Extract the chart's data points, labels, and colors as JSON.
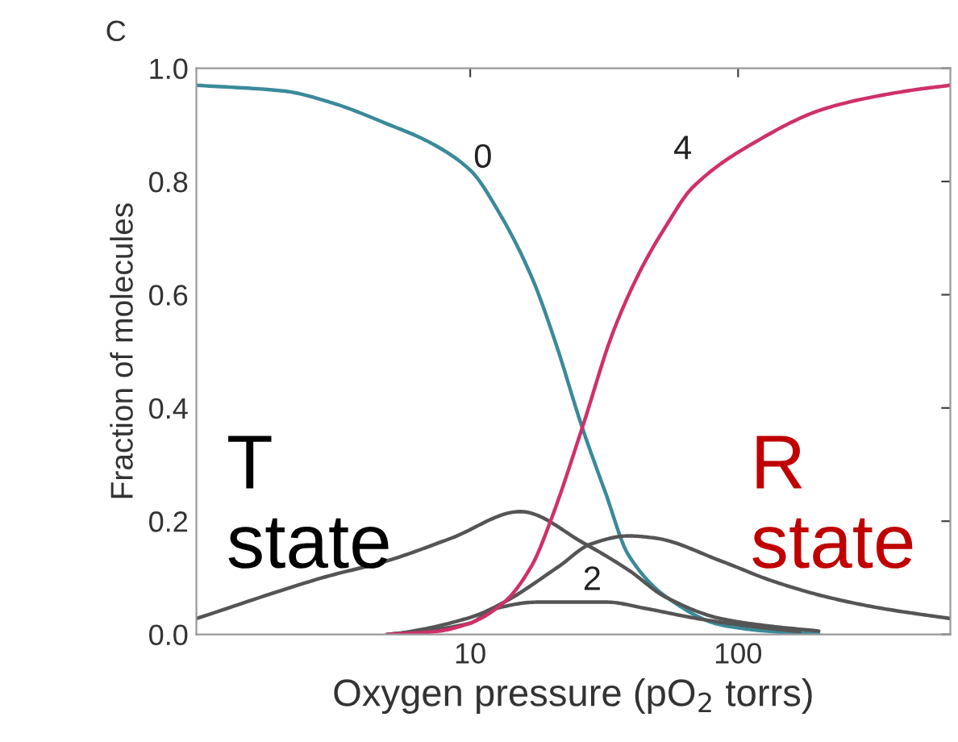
{
  "chart_data": {
    "type": "line",
    "xlabel": "Oxygen pressure (pO$_{2}$ torrs)",
    "ylabel": "Fraction of molecules",
    "log": "x",
    "grid": false,
    "legend": false,
    "marker": "none",
    "line_style": "solid",
    "xlim": [
      0.95,
      620
    ],
    "xticks": [
      10,
      100
    ],
    "ylim": [
      0,
      1.0
    ],
    "yticks": [
      {
        "value": 0,
        "label": "0.0"
      },
      {
        "value": 0.2,
        "label": "0.2"
      },
      {
        "value": 0.4,
        "label": "0.4"
      },
      {
        "value": 0.6,
        "label": "0.6"
      },
      {
        "value": 0.8,
        "label": "0.8"
      },
      {
        "value": 1.0,
        "label": "1.0"
      }
    ],
    "series": [
      {
        "color": "#3a8a9a",
        "x": [
          0.95,
          2,
          3,
          5,
          7,
          10,
          13,
          17,
          21,
          26,
          32,
          39,
          54,
          86,
          135,
          200
        ],
        "values": [
          0.97,
          0.96,
          0.94,
          0.9,
          0.87,
          0.82,
          0.74,
          0.63,
          0.51,
          0.37,
          0.25,
          0.14,
          0.066,
          0.017,
          0.005,
          0.001
        ]
      },
      {
        "color": "#555555",
        "x": [
          0.95,
          2.8,
          4.9,
          8.5,
          15.4,
          26.8,
          38.9,
          53.6,
          86,
          135,
          200
        ],
        "values": [
          0.028,
          0.1,
          0.13,
          0.17,
          0.217,
          0.16,
          0.114,
          0.066,
          0.028,
          0.014,
          0.006
        ]
      },
      {
        "color": "#555555",
        "x": [
          4.9,
          6.4,
          10,
          12.3,
          17.7,
          32.5,
          44.9,
          70.6,
          113,
          170
        ],
        "values": [
          0,
          0.005,
          0.02,
          0.045,
          0.057,
          0.057,
          0.046,
          0.028,
          0.014,
          0.005
        ]
      },
      {
        "color": "#555555",
        "x": [
          4.9,
          5.6,
          10,
          13.4,
          21.4,
          28.3,
          38.9,
          49.3,
          86,
          135,
          215,
          344,
          620
        ],
        "values": [
          0,
          0.003,
          0.03,
          0.057,
          0.12,
          0.16,
          0.174,
          0.17,
          0.13,
          0.094,
          0.066,
          0.046,
          0.028
        ]
      },
      {
        "color": "#d0306a",
        "x": [
          4.9,
          7.4,
          10,
          13.4,
          16.9,
          20.3,
          26.4,
          33.9,
          42.9,
          53.6,
          67.8,
          107,
          215,
          428,
          620
        ],
        "values": [
          0,
          0.005,
          0.02,
          0.057,
          0.12,
          0.21,
          0.37,
          0.53,
          0.64,
          0.72,
          0.79,
          0.86,
          0.93,
          0.96,
          0.97
        ]
      }
    ],
    "annotations": [
      "C",
      "0",
      "4",
      "2",
      "T\nstate",
      "R\nstate"
    ]
  }
}
